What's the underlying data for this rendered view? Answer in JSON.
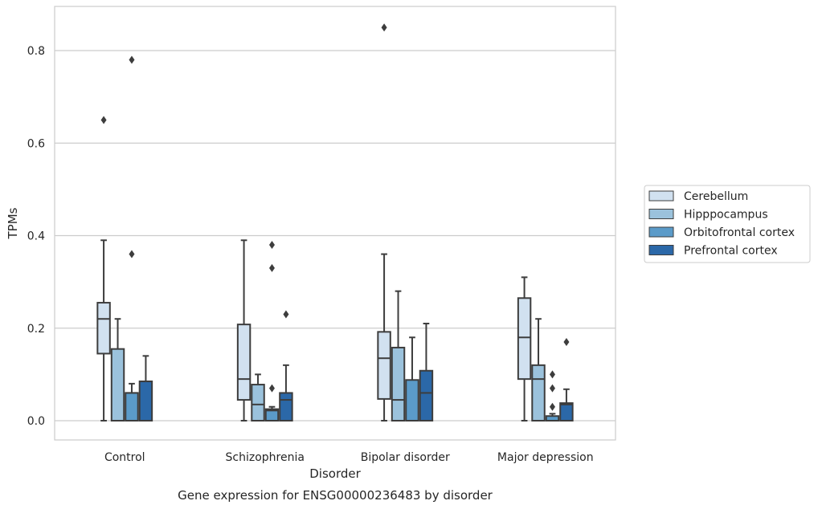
{
  "chart_data": {
    "type": "box",
    "xlabel": "Disorder",
    "ylabel": "TPMs",
    "caption": "Gene expression for ENSG00000236483 by disorder",
    "ylim": [
      -0.04,
      0.895
    ],
    "yticks": [
      0.0,
      0.2,
      0.4,
      0.6,
      0.8
    ],
    "ytick_labels": [
      "0.0",
      "0.2",
      "0.4",
      "0.6",
      "0.8"
    ],
    "grid": "horizontal",
    "legend_position": "right",
    "categories": [
      "Control",
      "Schizophrenia",
      "Bipolar disorder",
      "Major depression"
    ],
    "series": [
      {
        "name": "Cerebellum",
        "color": "#d1e1f0",
        "boxes": [
          {
            "whislo": 0.0,
            "q1": 0.145,
            "med": 0.22,
            "q3": 0.255,
            "whishi": 0.39,
            "fliers": [
              0.65
            ]
          },
          {
            "whislo": 0.0,
            "q1": 0.045,
            "med": 0.09,
            "q3": 0.208,
            "whishi": 0.39,
            "fliers": []
          },
          {
            "whislo": 0.0,
            "q1": 0.047,
            "med": 0.135,
            "q3": 0.192,
            "whishi": 0.36,
            "fliers": [
              0.85
            ]
          },
          {
            "whislo": 0.0,
            "q1": 0.09,
            "med": 0.18,
            "q3": 0.265,
            "whishi": 0.31,
            "fliers": []
          }
        ]
      },
      {
        "name": "Hipppocampus",
        "color": "#9bc2dc",
        "boxes": [
          {
            "whislo": 0.0,
            "q1": 0.0,
            "med": 0.0,
            "q3": 0.155,
            "whishi": 0.22,
            "fliers": []
          },
          {
            "whislo": 0.0,
            "q1": 0.0,
            "med": 0.035,
            "q3": 0.078,
            "whishi": 0.1,
            "fliers": []
          },
          {
            "whislo": 0.0,
            "q1": 0.0,
            "med": 0.045,
            "q3": 0.158,
            "whishi": 0.28,
            "fliers": []
          },
          {
            "whislo": 0.0,
            "q1": 0.0,
            "med": 0.09,
            "q3": 0.12,
            "whishi": 0.22,
            "fliers": []
          }
        ]
      },
      {
        "name": "Orbitofrontal cortex",
        "color": "#5b9bc9",
        "boxes": [
          {
            "whislo": 0.0,
            "q1": 0.0,
            "med": 0.06,
            "q3": 0.06,
            "whishi": 0.08,
            "fliers": [
              0.36,
              0.78
            ]
          },
          {
            "whislo": 0.0,
            "q1": 0.0,
            "med": 0.022,
            "q3": 0.025,
            "whishi": 0.03,
            "fliers": [
              0.07,
              0.33,
              0.38
            ]
          },
          {
            "whislo": 0.0,
            "q1": 0.0,
            "med": 0.0,
            "q3": 0.088,
            "whishi": 0.18,
            "fliers": []
          },
          {
            "whislo": 0.0,
            "q1": 0.0,
            "med": 0.0,
            "q3": 0.01,
            "whishi": 0.015,
            "fliers": [
              0.03,
              0.07,
              0.1
            ]
          }
        ]
      },
      {
        "name": "Prefrontal cortex",
        "color": "#2b68a8",
        "boxes": [
          {
            "whislo": 0.0,
            "q1": 0.0,
            "med": 0.085,
            "q3": 0.085,
            "whishi": 0.14,
            "fliers": []
          },
          {
            "whislo": 0.0,
            "q1": 0.0,
            "med": 0.045,
            "q3": 0.06,
            "whishi": 0.12,
            "fliers": [
              0.23
            ]
          },
          {
            "whislo": 0.0,
            "q1": 0.0,
            "med": 0.06,
            "q3": 0.108,
            "whishi": 0.21,
            "fliers": []
          },
          {
            "whislo": 0.0,
            "q1": 0.0,
            "med": 0.035,
            "q3": 0.038,
            "whishi": 0.068,
            "fliers": [
              0.17
            ]
          }
        ]
      }
    ]
  },
  "colors": {
    "edge": "#3d3d3d",
    "grid": "#cccccc",
    "frame": "#cccccc",
    "flier": "#3d3d3d"
  }
}
